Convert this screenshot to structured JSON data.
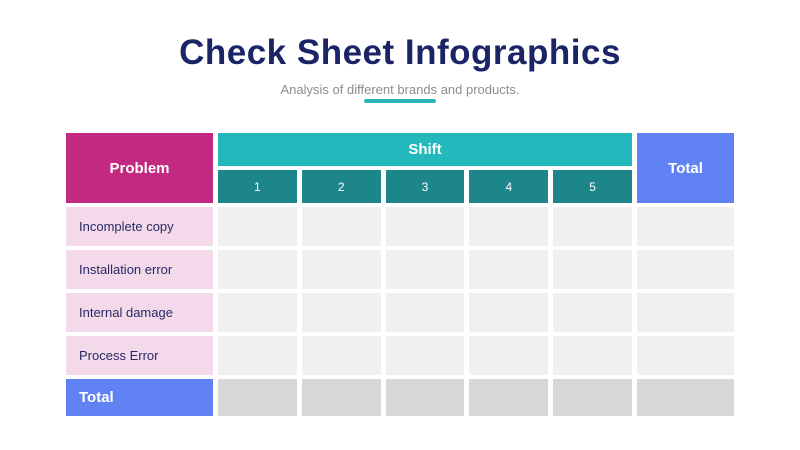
{
  "page": {
    "title": "Check Sheet Infographics",
    "subtitle": "Analysis of different brands and products."
  },
  "colors": {
    "title_navy": "#1B2467",
    "subtitle_gray": "#8D8D8D",
    "accent_teal": "#2DB4B7",
    "problem_magenta": "#C22981",
    "shift_teal": "#23B8BB",
    "shift_sub_teal": "#1D868B",
    "total_blue": "#6182F3",
    "row_label_pink": "#F3D9E9",
    "cell_gray": "#F0F0F0",
    "total_cell_gray": "#D7D7D7",
    "label_text_navy": "#282A67"
  },
  "table": {
    "headers": {
      "problem": "Problem",
      "shift": "Shift",
      "total": "Total"
    },
    "shift_numbers": [
      "1",
      "2",
      "3",
      "4",
      "5"
    ],
    "rows": [
      {
        "label": "Incomplete copy",
        "cells": [
          "",
          "",
          "",
          "",
          "",
          ""
        ]
      },
      {
        "label": "Installation error",
        "cells": [
          "",
          "",
          "",
          "",
          "",
          ""
        ]
      },
      {
        "label": "Internal damage",
        "cells": [
          "",
          "",
          "",
          "",
          "",
          ""
        ]
      },
      {
        "label": "Process Error",
        "cells": [
          "",
          "",
          "",
          "",
          "",
          ""
        ]
      }
    ],
    "total_row": {
      "label": "Total",
      "cells": [
        "",
        "",
        "",
        "",
        "",
        ""
      ]
    }
  }
}
